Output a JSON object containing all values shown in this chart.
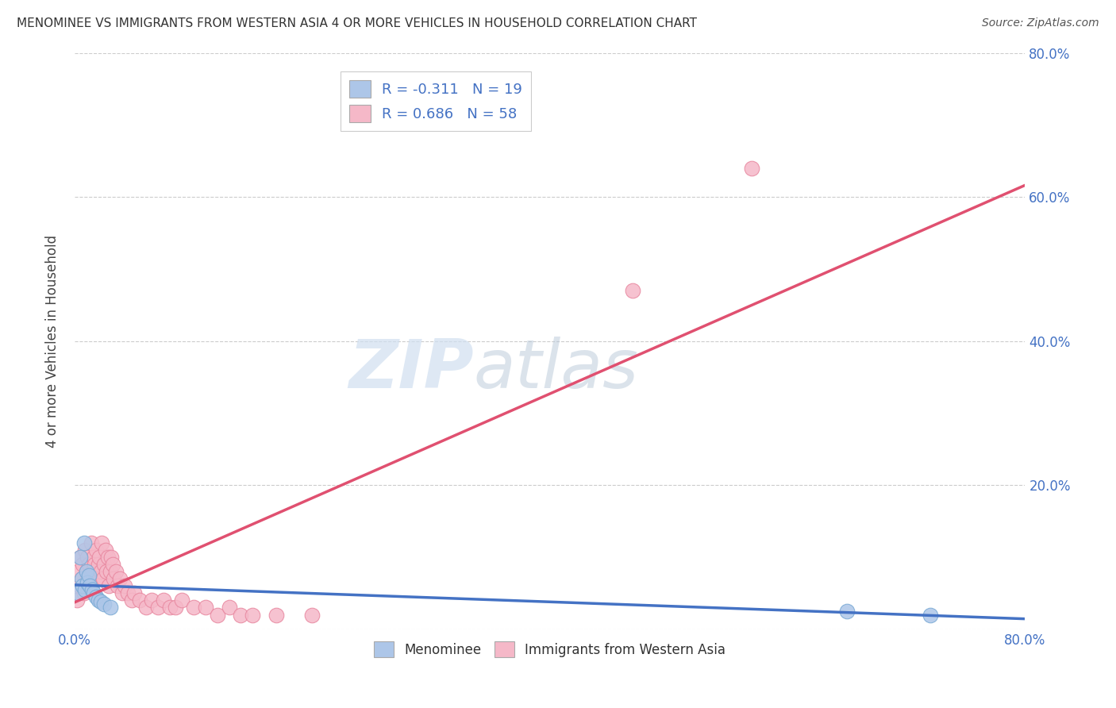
{
  "title": "MENOMINEE VS IMMIGRANTS FROM WESTERN ASIA 4 OR MORE VEHICLES IN HOUSEHOLD CORRELATION CHART",
  "source": "Source: ZipAtlas.com",
  "ylabel": "4 or more Vehicles in Household",
  "xlim": [
    0.0,
    0.8
  ],
  "ylim": [
    0.0,
    0.8
  ],
  "xticks": [
    0.0,
    0.1,
    0.2,
    0.3,
    0.4,
    0.5,
    0.6,
    0.7,
    0.8
  ],
  "yticks": [
    0.0,
    0.2,
    0.4,
    0.6,
    0.8
  ],
  "xtick_labels": [
    "0.0%",
    "",
    "",
    "",
    "",
    "",
    "",
    "",
    "80.0%"
  ],
  "ytick_labels_right": [
    "",
    "20.0%",
    "40.0%",
    "60.0%",
    "80.0%"
  ],
  "legend_r1": "R = -0.311",
  "legend_n1": "N = 19",
  "legend_r2": "R = 0.686",
  "legend_n2": "N = 58",
  "menominee_color": "#adc6e8",
  "menominee_edge_color": "#7aaad4",
  "menominee_line_color": "#4472c4",
  "immigrants_color": "#f5b8c8",
  "immigrants_edge_color": "#e888a0",
  "immigrants_line_color": "#e05070",
  "background_color": "#ffffff",
  "grid_color": "#cccccc",
  "watermark_color": "#d0dff0",
  "menominee_x": [
    0.003,
    0.005,
    0.006,
    0.007,
    0.008,
    0.009,
    0.01,
    0.011,
    0.012,
    0.013,
    0.015,
    0.016,
    0.018,
    0.02,
    0.022,
    0.025,
    0.03,
    0.65,
    0.72
  ],
  "menominee_y": [
    0.05,
    0.1,
    0.07,
    0.06,
    0.12,
    0.055,
    0.08,
    0.065,
    0.075,
    0.06,
    0.055,
    0.05,
    0.045,
    0.04,
    0.038,
    0.035,
    0.03,
    0.025,
    0.02
  ],
  "immigrants_x": [
    0.002,
    0.003,
    0.004,
    0.005,
    0.006,
    0.007,
    0.008,
    0.009,
    0.01,
    0.011,
    0.012,
    0.013,
    0.014,
    0.015,
    0.016,
    0.017,
    0.018,
    0.019,
    0.02,
    0.021,
    0.022,
    0.023,
    0.024,
    0.025,
    0.026,
    0.027,
    0.028,
    0.029,
    0.03,
    0.031,
    0.032,
    0.033,
    0.035,
    0.036,
    0.038,
    0.04,
    0.042,
    0.045,
    0.048,
    0.05,
    0.055,
    0.06,
    0.065,
    0.07,
    0.075,
    0.08,
    0.085,
    0.09,
    0.1,
    0.11,
    0.12,
    0.13,
    0.14,
    0.15,
    0.17,
    0.2,
    0.47,
    0.57
  ],
  "immigrants_y": [
    0.04,
    0.08,
    0.06,
    0.1,
    0.07,
    0.09,
    0.05,
    0.11,
    0.08,
    0.1,
    0.09,
    0.07,
    0.12,
    0.08,
    0.1,
    0.09,
    0.11,
    0.07,
    0.09,
    0.1,
    0.08,
    0.12,
    0.07,
    0.09,
    0.11,
    0.08,
    0.1,
    0.06,
    0.08,
    0.1,
    0.09,
    0.07,
    0.08,
    0.06,
    0.07,
    0.05,
    0.06,
    0.05,
    0.04,
    0.05,
    0.04,
    0.03,
    0.04,
    0.03,
    0.04,
    0.03,
    0.03,
    0.04,
    0.03,
    0.03,
    0.02,
    0.03,
    0.02,
    0.02,
    0.02,
    0.02,
    0.47,
    0.64
  ]
}
